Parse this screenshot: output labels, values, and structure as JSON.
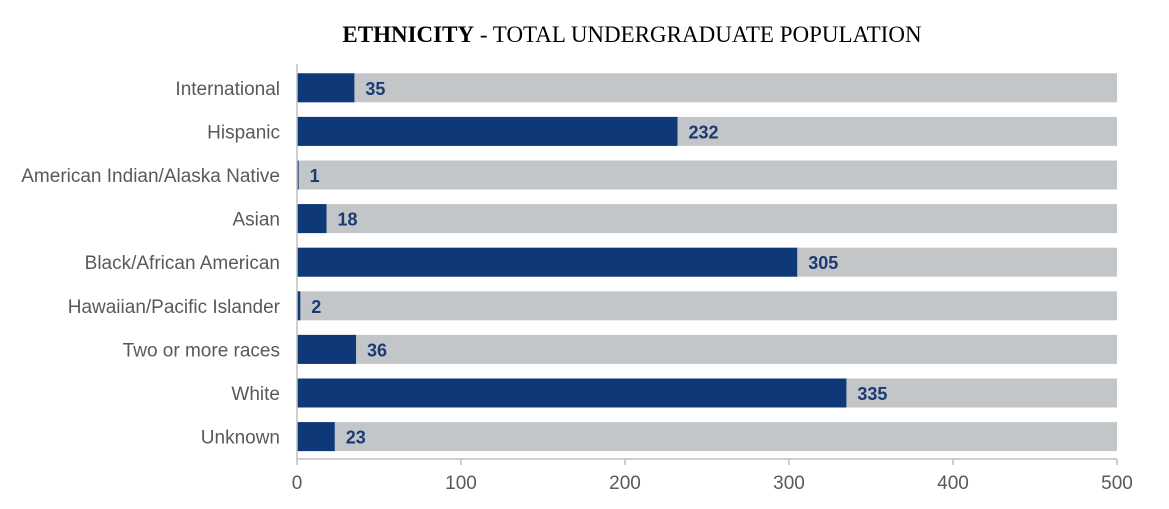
{
  "chart_data": {
    "type": "bar",
    "orientation": "horizontal",
    "title_bold": "ETHNICITY",
    "title_rest": " - TOTAL UNDERGRADUATE POPULATION",
    "categories": [
      "International",
      "Hispanic",
      "American Indian/Alaska Native",
      "Asian",
      "Black/African American",
      "Hawaiian/Pacific Islander",
      "Two or more races",
      "White",
      "Unknown"
    ],
    "values": [
      35,
      232,
      1,
      18,
      305,
      2,
      36,
      335,
      23
    ],
    "background_bar_value": 500,
    "xlim": [
      0,
      500
    ],
    "xticks": [
      0,
      100,
      200,
      300,
      400,
      500
    ],
    "xlabel": "",
    "ylabel": "",
    "grid": false,
    "legend": "none",
    "colors": {
      "bar": "#0f3878",
      "background_bar": "#c3c6c8",
      "data_label": "#1b3a73",
      "axis": "#bfbfbf"
    }
  }
}
